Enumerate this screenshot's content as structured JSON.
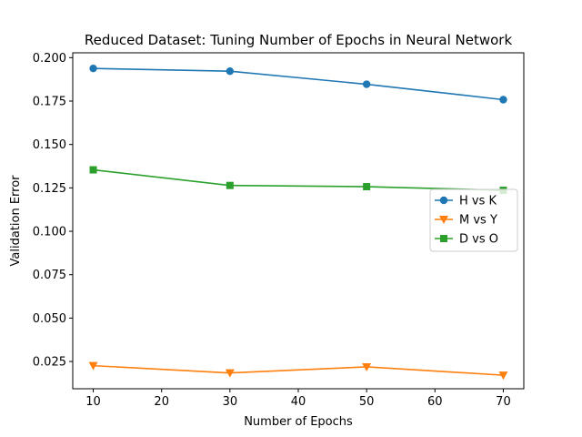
{
  "chart_data": {
    "type": "line",
    "title": "Reduced Dataset: Tuning Number of Epochs in Neural Network",
    "xlabel": "Number of Epochs",
    "ylabel": "Validation Error",
    "x": [
      10,
      30,
      50,
      70
    ],
    "xlim": [
      7,
      73
    ],
    "ylim": [
      0.0093,
      0.2028
    ],
    "xticks": [
      "10",
      "20",
      "30",
      "40",
      "50",
      "60",
      "70"
    ],
    "yticks": [
      "0.025",
      "0.050",
      "0.075",
      "0.100",
      "0.125",
      "0.150",
      "0.175",
      "0.200"
    ],
    "grid": false,
    "legend_position": "center-right",
    "series": [
      {
        "name": "H vs K",
        "values": [
          0.1938,
          0.1922,
          0.1847,
          0.1758
        ],
        "color": "#1f77b4",
        "marker": "circle"
      },
      {
        "name": "M vs Y",
        "values": [
          0.0226,
          0.0184,
          0.0219,
          0.0171
        ],
        "color": "#ff7f0e",
        "marker": "triangle-down"
      },
      {
        "name": "D vs O",
        "values": [
          0.1354,
          0.1264,
          0.1257,
          0.1236
        ],
        "color": "#2ca02c",
        "marker": "square"
      }
    ]
  }
}
